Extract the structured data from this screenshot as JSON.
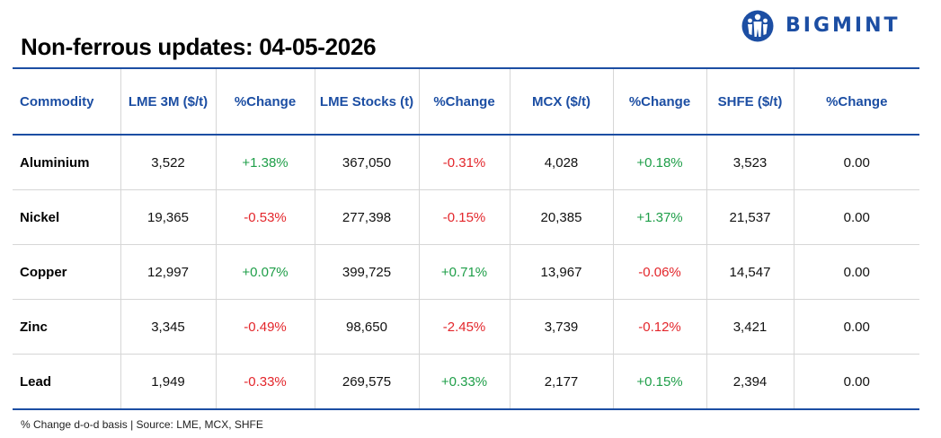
{
  "title": "Non-ferrous updates: 04-05-2026",
  "logo": {
    "text": "BIGMINT",
    "color": "#1c4ea3"
  },
  "table": {
    "headers": [
      "Commodity",
      "LME 3M ($/t)",
      "%Change",
      "LME Stocks (t)",
      "%Change",
      "MCX ($/t)",
      "%Change",
      "SHFE ($/t)",
      "%Change"
    ],
    "rows": [
      [
        "Aluminium",
        "3,522",
        "+1.38%",
        "367,050",
        "-0.31%",
        "4,028",
        "+0.18%",
        "3,523",
        "0.00"
      ],
      [
        "Nickel",
        "19,365",
        "-0.53%",
        "277,398",
        "-0.15%",
        "20,385",
        "+1.37%",
        "21,537",
        "0.00"
      ],
      [
        "Copper",
        "12,997",
        "+0.07%",
        "399,725",
        "+0.71%",
        "13,967",
        "-0.06%",
        "14,547",
        "0.00"
      ],
      [
        "Zinc",
        "3,345",
        "-0.49%",
        "98,650",
        "-2.45%",
        "3,739",
        "-0.12%",
        "3,421",
        "0.00"
      ],
      [
        "Lead",
        "1,949",
        "-0.33%",
        "269,575",
        "+0.33%",
        "2,177",
        "+0.15%",
        "2,394",
        "0.00"
      ]
    ]
  },
  "colors": {
    "accent": "#1c4ea3",
    "positive": "#1e9e48",
    "negative": "#e3262b"
  },
  "footer": "% Change d-o-d basis | Source: LME, MCX, SHFE"
}
